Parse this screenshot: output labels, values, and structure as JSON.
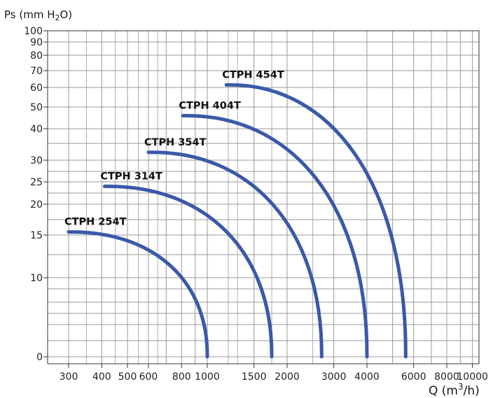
{
  "chart_data": {
    "type": "line",
    "ylabel": {
      "prefix": "Ps (mm H",
      "sub": "2",
      "suffix": "O)"
    },
    "xlabel": {
      "prefix": "Q (m",
      "sup": "3",
      "suffix": "/h)"
    },
    "x_ticks": [
      "300",
      "400",
      "500",
      "600",
      "800",
      "1000",
      "1500",
      "2000",
      "3000",
      "4000",
      "6000",
      "8000",
      "10000"
    ],
    "y_ticks": [
      "0",
      "10",
      "15",
      "20",
      "25",
      "30",
      "40",
      "50",
      "60",
      "70",
      "80",
      "90",
      "100"
    ],
    "grid": true,
    "series": [
      {
        "name": "CTPH 254T",
        "start_x": 300,
        "end_x": 1000,
        "start_y": 15.5,
        "end_y": 0
      },
      {
        "name": "CTPH 314T",
        "start_x": 410,
        "end_x": 1750,
        "start_y": 24,
        "end_y": 0
      },
      {
        "name": "CTPH 354T",
        "start_x": 600,
        "end_x": 2700,
        "start_y": 32.5,
        "end_y": 0
      },
      {
        "name": "CTPH 404T",
        "start_x": 810,
        "end_x": 4000,
        "start_y": 46,
        "end_y": 0
      },
      {
        "name": "CTPH 454T",
        "start_x": 1180,
        "end_x": 5600,
        "start_y": 61.5,
        "end_y": 0
      }
    ],
    "line_color": "#3a59a8",
    "grid_color": "#9a9a9a"
  }
}
